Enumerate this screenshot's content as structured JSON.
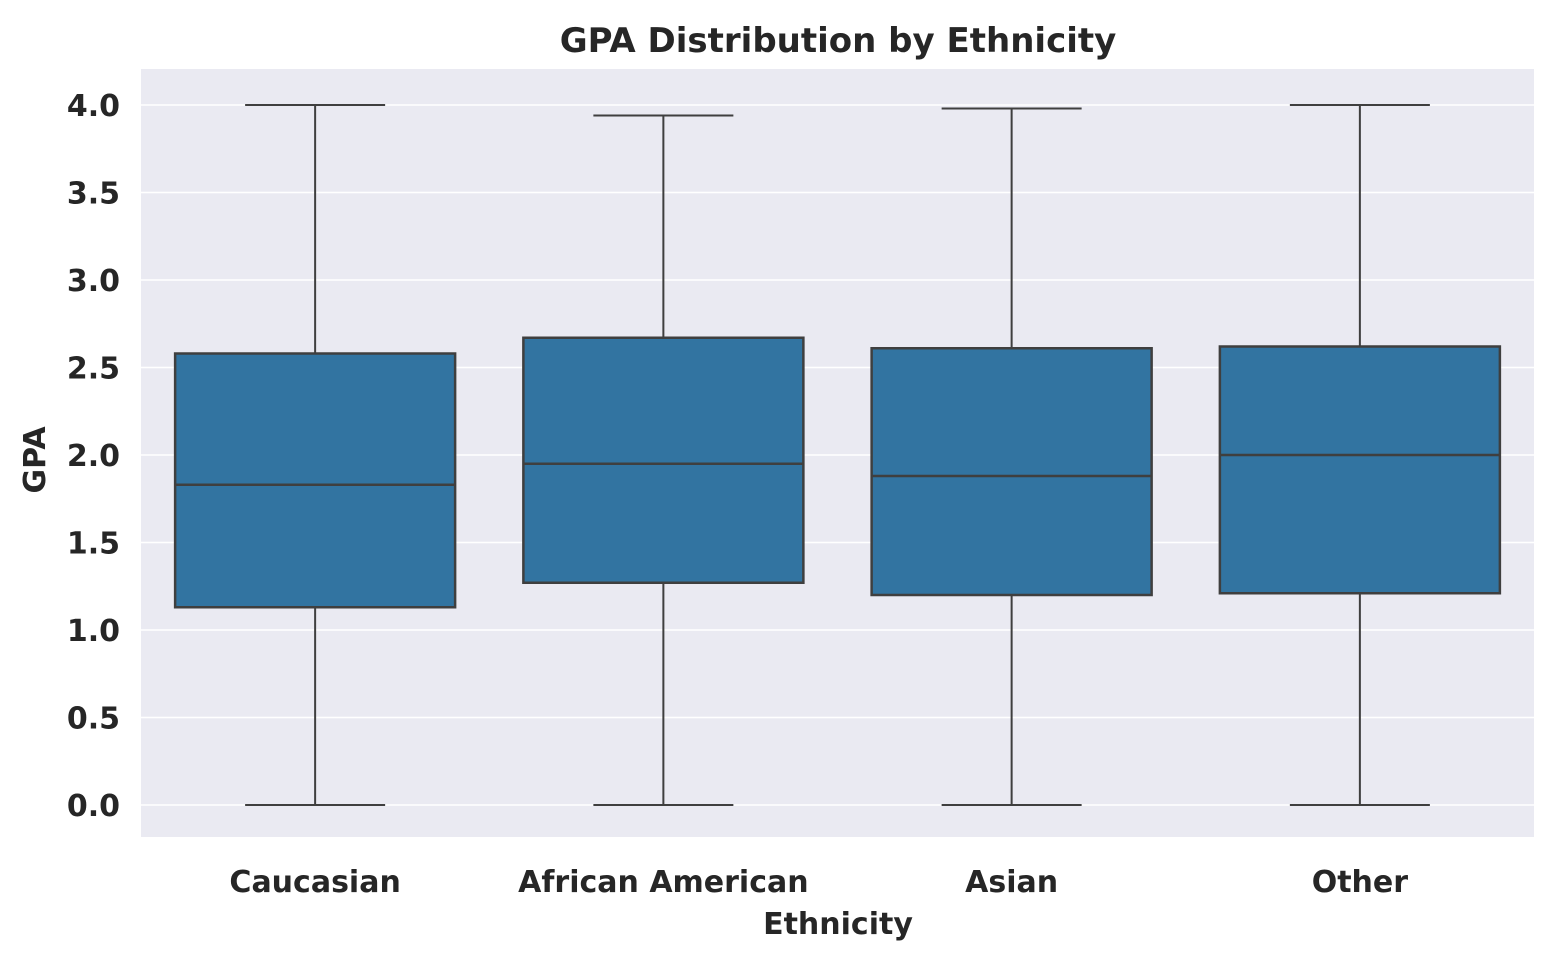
{
  "chart_data": {
    "type": "box",
    "title": "GPA Distribution by Ethnicity",
    "xlabel": "Ethnicity",
    "ylabel": "GPA",
    "categories": [
      "Caucasian",
      "African American",
      "Asian",
      "Other"
    ],
    "boxes": [
      {
        "category": "Caucasian",
        "whisker_low": 0.0,
        "q1": 1.13,
        "median": 1.83,
        "q3": 2.58,
        "whisker_high": 4.0
      },
      {
        "category": "African American",
        "whisker_low": 0.0,
        "q1": 1.27,
        "median": 1.95,
        "q3": 2.67,
        "whisker_high": 3.94
      },
      {
        "category": "Asian",
        "whisker_low": 0.0,
        "q1": 1.2,
        "median": 1.88,
        "q3": 2.61,
        "whisker_high": 3.98
      },
      {
        "category": "Other",
        "whisker_low": 0.0,
        "q1": 1.21,
        "median": 2.0,
        "q3": 2.62,
        "whisker_high": 4.0
      }
    ],
    "yticks": [
      0.0,
      0.5,
      1.0,
      1.5,
      2.0,
      2.5,
      3.0,
      3.5,
      4.0
    ],
    "ytick_labels": [
      "0.0",
      "0.5",
      "1.0",
      "1.5",
      "2.0",
      "2.5",
      "3.0",
      "3.5",
      "4.0"
    ],
    "ylim": [
      -0.2,
      4.2
    ],
    "grid": true,
    "legend": "none",
    "colors": {
      "box_fill": "#3274a1",
      "box_edge": "#3f3f3f",
      "plot_background": "#eaeaf2",
      "grid": "#ffffff",
      "text": "#262626"
    }
  }
}
